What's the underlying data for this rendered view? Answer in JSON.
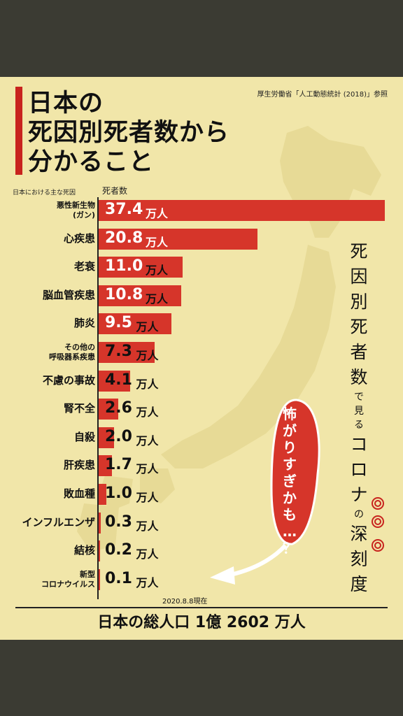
{
  "title": [
    "日本の",
    "死因別死者数から",
    "分かること"
  ],
  "source": "厚生労働省「人工動態統計 (2018)」参照",
  "column_headers": {
    "cause": "日本における主な死因",
    "deaths": "死者数"
  },
  "chart_data": {
    "type": "bar",
    "orientation": "horizontal",
    "unit": "万人",
    "categories": [
      "悪性新生物\n(ガン)",
      "心疾患",
      "老衰",
      "脳血管疾患",
      "肺炎",
      "その他の\n呼吸器系疾患",
      "不慮の事故",
      "腎不全",
      "自殺",
      "肝疾患",
      "敗血種",
      "インフルエンザ",
      "結核",
      "新型\nコロナウイルス"
    ],
    "values": [
      37.4,
      20.8,
      11.0,
      10.8,
      9.5,
      7.3,
      4.1,
      2.6,
      2.0,
      1.7,
      1.0,
      0.3,
      0.2,
      0.1
    ],
    "value_labels": [
      "37.4",
      "20.8",
      "11.0",
      "10.8",
      "9.5",
      "7.3",
      "4.1",
      "2.6",
      "2.0",
      "1.7",
      "1.0",
      "0.3",
      "0.2",
      "0.1"
    ],
    "xlim": [
      0,
      37.4
    ],
    "bar_color": "#d6352a"
  },
  "date_note": "2020.8.8現在",
  "total_population": "日本の総人口 1億 2602 万人",
  "vertical_caption": {
    "parts": [
      "死",
      "因",
      "別",
      "死",
      "者",
      "数",
      "で",
      "見",
      "る",
      "コ",
      "ロ",
      "ナ",
      "の",
      "深",
      "刻",
      "度"
    ],
    "small": [
      "で",
      "見",
      "る",
      "の"
    ]
  },
  "bubble_text": "怖がりすぎかも…？",
  "colors": {
    "background": "#f1e6a9",
    "accent": "#c8231e",
    "bar": "#d6352a",
    "frame": "#3b3b33"
  }
}
